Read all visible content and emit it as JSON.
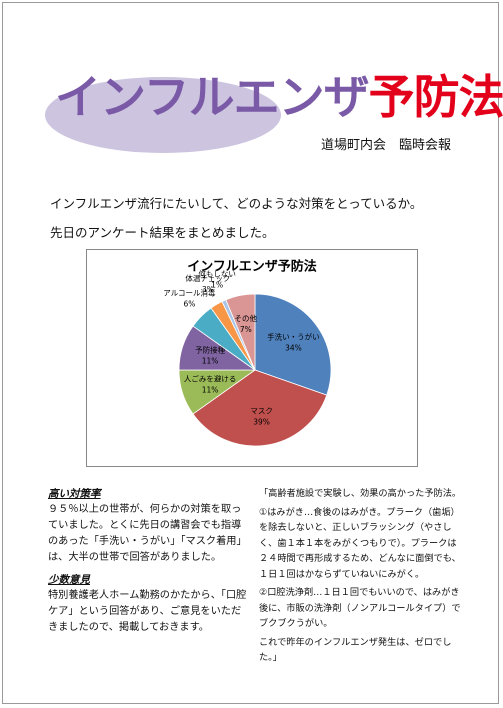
{
  "header": {
    "title_main": "インフルエンザ",
    "title_accent": "予防法",
    "subtitle": "道場町内会　臨時会報"
  },
  "intro": [
    "インフルエンザ流行にたいして、どのような対策をとっているか。",
    "先日のアンケート結果をまとめました。"
  ],
  "chart_data": {
    "type": "pie",
    "title": "インフルエンザ予防法",
    "categories": [
      "手洗い・うがい",
      "マスク",
      "人ごみを避ける",
      "予防接種",
      "アルコール消毒",
      "体温チェック",
      "何もしない",
      "その他"
    ],
    "values": [
      34,
      39,
      11,
      11,
      6,
      3,
      1,
      7
    ],
    "value_labels": [
      "34%",
      "39%",
      "11%",
      "11%",
      "6%",
      "3%",
      "1%",
      "7%"
    ],
    "colors": [
      "#4f81bd",
      "#c0504d",
      "#9bbb59",
      "#8064a2",
      "#4bacc6",
      "#f79646",
      "#a9c4e6",
      "#d99694"
    ]
  },
  "sections": [
    {
      "heading": "高い対策率",
      "text": "９５％以上の世帯が、何らかの対策を取っていました。とくに先日の講習会でも指導のあった「手洗い・うがい」「マスク着用」は、大半の世帯で回答がありました。"
    },
    {
      "heading": "少数意見",
      "text": "特別養護老人ホーム勤務のかたから、「口腔ケア」という回答があり、ご意見をいただきましたので、掲載しておきます。"
    }
  ],
  "quote": [
    "「高齢者施設で実験し、効果の高かった予防法。",
    "①はみがき…食後のはみがき。プラーク（歯垢）を除去しないと、正しいブラッシング（やさしく、歯１本１本をみがくつもりで）。プラークは２４時間で再形成するため、どんなに面倒でも、１日１回はかならずていねいにみがく。",
    "②口腔洗浄剤…１日１回でもいいので、はみがき後に、市販の洗浄剤（ノンアルコールタイプ）でブクブクうがい。",
    "これで昨年のインフルエンザ発生は、ゼロでした。」"
  ]
}
